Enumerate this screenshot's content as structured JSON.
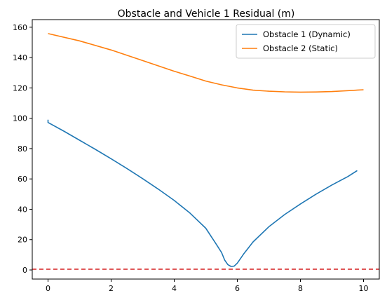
{
  "chart_data": {
    "type": "line",
    "title": "Obstacle and Vehicle 1 Residual (m)",
    "xlabel": "",
    "ylabel": "",
    "xlim": [
      -0.5,
      10.5
    ],
    "ylim": [
      -6,
      165
    ],
    "xticks": [
      0,
      2,
      4,
      6,
      8,
      10
    ],
    "yticks": [
      0,
      20,
      40,
      60,
      80,
      100,
      120,
      140,
      160
    ],
    "grid": false,
    "legend_position": "top-right",
    "reference_line": {
      "y": 0.5,
      "color": "#d62728",
      "style": "dashed"
    },
    "series": [
      {
        "name": "Obstacle 1 (Dynamic)",
        "color": "#1f77b4",
        "points": [
          [
            0,
            99
          ],
          [
            0,
            97.2
          ],
          [
            0.5,
            91.5
          ],
          [
            1,
            85.5
          ],
          [
            1.5,
            79.5
          ],
          [
            2,
            73.3
          ],
          [
            2.5,
            66.9
          ],
          [
            3,
            60.2
          ],
          [
            3.5,
            53.2
          ],
          [
            4,
            45.8
          ],
          [
            4.5,
            37.5
          ],
          [
            5,
            27.5
          ],
          [
            5.3,
            18
          ],
          [
            5.5,
            11.5
          ],
          [
            5.6,
            6.5
          ],
          [
            5.7,
            3.5
          ],
          [
            5.8,
            2.3
          ],
          [
            5.9,
            2.5
          ],
          [
            6,
            4.5
          ],
          [
            6.2,
            10.5
          ],
          [
            6.5,
            18.5
          ],
          [
            7,
            28.5
          ],
          [
            7.5,
            36.5
          ],
          [
            8,
            43.5
          ],
          [
            8.5,
            50
          ],
          [
            9,
            56
          ],
          [
            9.5,
            61.5
          ],
          [
            9.8,
            65.5
          ]
        ]
      },
      {
        "name": "Obstacle 2 (Static)",
        "color": "#ff7f0e",
        "points": [
          [
            0,
            155.8
          ],
          [
            1,
            151
          ],
          [
            2,
            145
          ],
          [
            3,
            138
          ],
          [
            4,
            131
          ],
          [
            4.5,
            127.8
          ],
          [
            5,
            124.5
          ],
          [
            5.5,
            122
          ],
          [
            6,
            120
          ],
          [
            6.5,
            118.5
          ],
          [
            7,
            117.8
          ],
          [
            7.5,
            117.4
          ],
          [
            8,
            117.2
          ],
          [
            8.5,
            117.3
          ],
          [
            9,
            117.6
          ],
          [
            9.5,
            118.2
          ],
          [
            10,
            118.8
          ]
        ]
      }
    ]
  }
}
